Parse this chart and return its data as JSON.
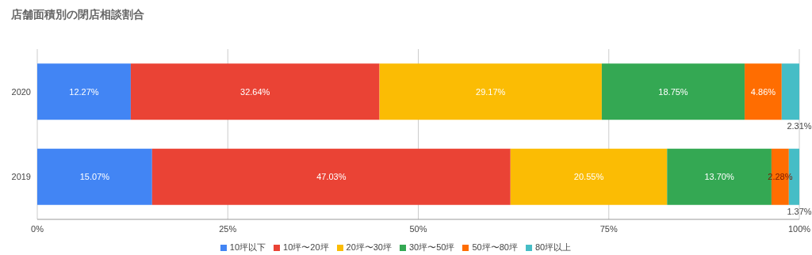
{
  "chart_data": {
    "type": "bar",
    "orientation": "horizontal",
    "stacked": true,
    "title": "店舗面積別の閉店相談割合",
    "categories": [
      "2020",
      "2019"
    ],
    "series": [
      {
        "name": "10坪以下",
        "color": "#4285f4",
        "values": [
          12.27,
          15.07
        ],
        "value_labels": [
          "12.27%",
          "15.07%"
        ]
      },
      {
        "name": "10坪〜20坪",
        "color": "#ea4335",
        "values": [
          32.64,
          47.03
        ],
        "value_labels": [
          "32.64%",
          "47.03%"
        ]
      },
      {
        "name": "20坪〜30坪",
        "color": "#fbbc04",
        "values": [
          29.17,
          20.55
        ],
        "value_labels": [
          "29.17%",
          "20.55%"
        ]
      },
      {
        "name": "30坪〜50坪",
        "color": "#34a853",
        "values": [
          18.75,
          13.7
        ],
        "value_labels": [
          "18.75%",
          "13.70%"
        ]
      },
      {
        "name": "50坪〜80坪",
        "color": "#ff6d01",
        "values": [
          4.86,
          2.28
        ],
        "value_labels": [
          "4.86%",
          "2.28%"
        ]
      },
      {
        "name": "80坪以上",
        "color": "#46bdc6",
        "values": [
          2.31,
          1.37
        ],
        "value_labels": [
          "2.31%",
          "1.37%"
        ]
      }
    ],
    "xlim": [
      0,
      100
    ],
    "xticks": [
      {
        "value": 0,
        "label": "0%"
      },
      {
        "value": 25,
        "label": "25%"
      },
      {
        "value": 50,
        "label": "50%"
      },
      {
        "value": 75,
        "label": "75%"
      },
      {
        "value": 100,
        "label": "100%"
      }
    ],
    "grid": "x",
    "legend": "bottom"
  }
}
